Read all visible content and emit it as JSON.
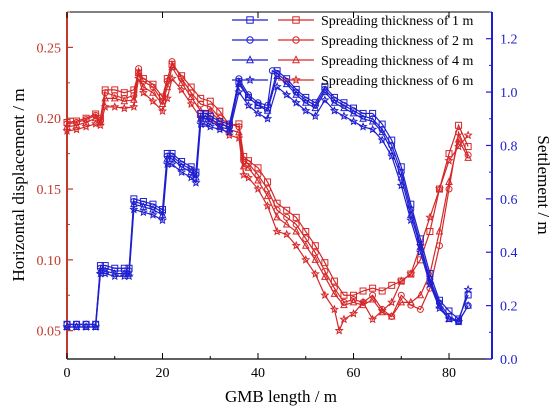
{
  "chart_data": {
    "type": "line",
    "xlabel": "GMB length / m",
    "ylabel_left": "Horizontal displacement / m",
    "ylabel_right": "Settlement / m",
    "xlim": [
      0,
      89
    ],
    "ylim_left": [
      0.03,
      0.275
    ],
    "ylim_right": [
      0.0,
      1.3
    ],
    "xticks": [
      "0",
      "20",
      "40",
      "60",
      "80"
    ],
    "yticks_left": [
      "0.05",
      "0.10",
      "0.15",
      "0.20",
      "0.25"
    ],
    "yticks_right": [
      "0.0",
      "0.2",
      "0.4",
      "0.6",
      "0.8",
      "1.0",
      "1.2"
    ],
    "legend_position": "top-right",
    "colors": {
      "displacement": "#d62728",
      "settlement": "#1f1fcf",
      "left_axis": "#c0392b",
      "right_axis": "#1f1fcf"
    },
    "legend": [
      {
        "label": "Spreading thickness of 1 m",
        "marker_settlement": "square",
        "marker_displacement": "square"
      },
      {
        "label": "Spreading thickness of 2 m",
        "marker_settlement": "circle",
        "marker_displacement": "circle"
      },
      {
        "label": "Spreading thickness of 4 m",
        "marker_settlement": "triangle",
        "marker_displacement": "triangle"
      },
      {
        "label": "Spreading thickness of 6 m",
        "marker_settlement": "star",
        "marker_displacement": "star"
      }
    ],
    "displacement_series": [
      {
        "name": "Spreading thickness of 1 m",
        "marker": "square",
        "x": [
          0,
          2,
          4,
          6,
          7,
          8,
          10,
          12,
          14,
          15,
          16,
          18,
          20,
          21,
          22,
          24,
          26,
          28,
          30,
          32,
          34,
          36,
          37,
          38,
          40,
          42,
          44,
          46,
          48,
          50,
          52,
          54,
          56,
          58,
          60,
          62,
          64,
          66,
          68,
          70,
          72,
          74,
          76,
          78,
          80,
          82,
          84
        ],
        "y": [
          0.197,
          0.198,
          0.2,
          0.203,
          0.2,
          0.22,
          0.22,
          0.218,
          0.22,
          0.232,
          0.228,
          0.224,
          0.215,
          0.228,
          0.238,
          0.23,
          0.222,
          0.214,
          0.212,
          0.205,
          0.195,
          0.196,
          0.173,
          0.17,
          0.165,
          0.155,
          0.14,
          0.135,
          0.13,
          0.12,
          0.11,
          0.098,
          0.085,
          0.075,
          0.075,
          0.078,
          0.08,
          0.078,
          0.082,
          0.085,
          0.09,
          0.1,
          0.12,
          0.15,
          0.175,
          0.195,
          0.18
        ]
      },
      {
        "name": "Spreading thickness of 2 m",
        "marker": "circle",
        "x": [
          0,
          2,
          4,
          6,
          7,
          8,
          10,
          12,
          14,
          15,
          16,
          18,
          20,
          21,
          22,
          24,
          26,
          28,
          30,
          32,
          34,
          36,
          37,
          38,
          40,
          42,
          44,
          46,
          48,
          50,
          52,
          54,
          56,
          58,
          60,
          62,
          64,
          66,
          68,
          70,
          72,
          74,
          76,
          78,
          80,
          82,
          84
        ],
        "y": [
          0.196,
          0.197,
          0.199,
          0.202,
          0.198,
          0.218,
          0.216,
          0.214,
          0.216,
          0.235,
          0.226,
          0.222,
          0.212,
          0.226,
          0.24,
          0.228,
          0.218,
          0.21,
          0.208,
          0.2,
          0.196,
          0.194,
          0.17,
          0.168,
          0.16,
          0.15,
          0.135,
          0.13,
          0.125,
          0.115,
          0.105,
          0.092,
          0.08,
          0.07,
          0.072,
          0.07,
          0.075,
          0.065,
          0.06,
          0.075,
          0.068,
          0.065,
          0.08,
          0.11,
          0.15,
          0.19,
          0.174
        ]
      },
      {
        "name": "Spreading thickness of 4 m",
        "marker": "triangle",
        "x": [
          0,
          2,
          4,
          6,
          7,
          8,
          10,
          12,
          14,
          15,
          16,
          18,
          20,
          21,
          22,
          24,
          26,
          28,
          30,
          32,
          34,
          36,
          37,
          38,
          40,
          42,
          44,
          46,
          48,
          50,
          52,
          54,
          56,
          58,
          60,
          62,
          64,
          66,
          68,
          70,
          72,
          74,
          76,
          78,
          80,
          82,
          84
        ],
        "y": [
          0.194,
          0.195,
          0.197,
          0.2,
          0.197,
          0.214,
          0.214,
          0.212,
          0.213,
          0.232,
          0.222,
          0.218,
          0.21,
          0.222,
          0.236,
          0.225,
          0.215,
          0.205,
          0.205,
          0.198,
          0.192,
          0.19,
          0.166,
          0.165,
          0.156,
          0.145,
          0.13,
          0.125,
          0.12,
          0.11,
          0.1,
          0.088,
          0.076,
          0.068,
          0.07,
          0.068,
          0.072,
          0.063,
          0.06,
          0.07,
          0.07,
          0.075,
          0.09,
          0.12,
          0.155,
          0.185,
          0.172
        ]
      },
      {
        "name": "Spreading thickness of 6 m",
        "marker": "star",
        "x": [
          0,
          2,
          4,
          6,
          7,
          8,
          10,
          12,
          14,
          15,
          16,
          18,
          20,
          21,
          22,
          24,
          26,
          28,
          30,
          32,
          34,
          36,
          37,
          38,
          40,
          42,
          44,
          46,
          48,
          50,
          52,
          54,
          56,
          57,
          58,
          60,
          62,
          64,
          66,
          68,
          70,
          72,
          74,
          76,
          78,
          80,
          82,
          84
        ],
        "y": [
          0.191,
          0.192,
          0.194,
          0.196,
          0.195,
          0.208,
          0.208,
          0.207,
          0.208,
          0.228,
          0.218,
          0.212,
          0.205,
          0.214,
          0.228,
          0.22,
          0.21,
          0.2,
          0.2,
          0.194,
          0.188,
          0.186,
          0.16,
          0.158,
          0.15,
          0.138,
          0.12,
          0.118,
          0.11,
          0.1,
          0.09,
          0.075,
          0.065,
          0.05,
          0.058,
          0.062,
          0.07,
          0.058,
          0.064,
          0.07,
          0.085,
          0.09,
          0.11,
          0.13,
          0.15,
          0.17,
          0.18,
          0.188
        ]
      }
    ],
    "settlement_series": [
      {
        "name": "Spreading thickness of 1 m",
        "marker": "square",
        "x": [
          0,
          2,
          4,
          6,
          7,
          8,
          10,
          12,
          13,
          14,
          16,
          18,
          20,
          21,
          22,
          24,
          26,
          27,
          28,
          29,
          30,
          32,
          34,
          36,
          38,
          40,
          42,
          44,
          46,
          48,
          50,
          52,
          54,
          56,
          58,
          60,
          62,
          64,
          66,
          68,
          70,
          72,
          74,
          76,
          78,
          80,
          82,
          84
        ],
        "y": [
          0.13,
          0.13,
          0.13,
          0.13,
          0.35,
          0.35,
          0.34,
          0.34,
          0.34,
          0.6,
          0.59,
          0.58,
          0.56,
          0.77,
          0.77,
          0.74,
          0.72,
          0.7,
          0.92,
          0.92,
          0.91,
          0.89,
          0.88,
          1.04,
          0.98,
          0.95,
          0.94,
          1.08,
          1.05,
          1.01,
          0.98,
          0.96,
          1.02,
          0.98,
          0.96,
          0.94,
          0.92,
          0.92,
          0.88,
          0.82,
          0.72,
          0.58,
          0.45,
          0.32,
          0.22,
          0.18,
          0.15,
          0.24
        ]
      },
      {
        "name": "Spreading thickness of 2 m",
        "marker": "circle",
        "x": [
          0,
          2,
          4,
          6,
          7,
          8,
          10,
          12,
          13,
          14,
          16,
          18,
          20,
          21,
          22,
          24,
          26,
          27,
          28,
          29,
          30,
          32,
          34,
          36,
          38,
          40,
          42,
          43,
          44,
          46,
          48,
          50,
          52,
          54,
          56,
          58,
          60,
          62,
          64,
          66,
          68,
          70,
          72,
          74,
          76,
          78,
          80,
          82,
          84
        ],
        "y": [
          0.13,
          0.13,
          0.13,
          0.13,
          0.34,
          0.34,
          0.33,
          0.33,
          0.33,
          0.59,
          0.58,
          0.57,
          0.55,
          0.76,
          0.76,
          0.73,
          0.71,
          0.69,
          0.91,
          0.91,
          0.9,
          0.88,
          0.87,
          1.05,
          0.99,
          0.96,
          0.95,
          1.08,
          1.07,
          1.04,
          1.0,
          0.97,
          0.95,
          1.01,
          0.97,
          0.95,
          0.93,
          0.91,
          0.9,
          0.86,
          0.8,
          0.7,
          0.56,
          0.43,
          0.3,
          0.21,
          0.16,
          0.14,
          0.2
        ]
      },
      {
        "name": "Spreading thickness of 4 m",
        "marker": "triangle",
        "x": [
          0,
          2,
          4,
          6,
          7,
          8,
          10,
          12,
          13,
          14,
          16,
          18,
          20,
          21,
          22,
          24,
          26,
          27,
          28,
          29,
          30,
          32,
          34,
          36,
          38,
          40,
          42,
          44,
          46,
          48,
          50,
          52,
          54,
          56,
          58,
          60,
          62,
          64,
          66,
          68,
          70,
          72,
          74,
          76,
          78,
          80,
          82,
          84
        ],
        "y": [
          0.12,
          0.12,
          0.12,
          0.12,
          0.33,
          0.33,
          0.32,
          0.32,
          0.32,
          0.58,
          0.57,
          0.56,
          0.54,
          0.75,
          0.75,
          0.72,
          0.7,
          0.68,
          0.9,
          0.9,
          0.89,
          0.87,
          0.86,
          1.03,
          0.98,
          0.95,
          0.93,
          1.06,
          1.03,
          0.99,
          0.96,
          0.94,
          1.0,
          0.96,
          0.94,
          0.92,
          0.9,
          0.89,
          0.85,
          0.78,
          0.68,
          0.54,
          0.42,
          0.29,
          0.2,
          0.15,
          0.14,
          0.2
        ]
      },
      {
        "name": "Spreading thickness of 6 m",
        "marker": "star",
        "x": [
          0,
          2,
          4,
          6,
          7,
          8,
          10,
          12,
          13,
          14,
          16,
          18,
          20,
          21,
          22,
          24,
          26,
          27,
          28,
          29,
          30,
          32,
          34,
          36,
          38,
          40,
          42,
          44,
          46,
          48,
          50,
          52,
          54,
          56,
          58,
          60,
          62,
          64,
          66,
          68,
          70,
          72,
          74,
          76,
          78,
          80,
          82,
          84
        ],
        "y": [
          0.12,
          0.12,
          0.12,
          0.12,
          0.32,
          0.32,
          0.31,
          0.31,
          0.31,
          0.56,
          0.55,
          0.54,
          0.52,
          0.73,
          0.73,
          0.7,
          0.68,
          0.66,
          0.88,
          0.88,
          0.87,
          0.86,
          0.85,
          1.0,
          0.95,
          0.92,
          0.9,
          1.02,
          0.99,
          0.96,
          0.93,
          0.91,
          0.97,
          0.93,
          0.91,
          0.89,
          0.87,
          0.86,
          0.82,
          0.76,
          0.65,
          0.52,
          0.4,
          0.28,
          0.19,
          0.15,
          0.14,
          0.26
        ]
      }
    ]
  }
}
